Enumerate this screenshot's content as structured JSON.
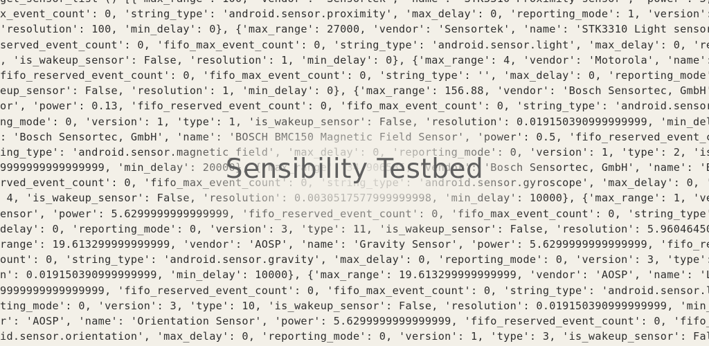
{
  "title": "Sensibility Testbed",
  "code_lines": [
    "get_sensor_list () [{'max_range': 100, 'vendor': 'Sensortek', 'name': 'STK3310 Proximity sensor', 'power': 3, 'fifo_reser",
    "x_event_count': 0, 'string_type': 'android.sensor.proximity', 'max_delay': 0, 'reporting_mode': 1, 'version': 1, 'type': 8,",
    "'resolution': 100, 'min_delay': 0}, {'max_range': 27000, 'vendor': 'Sensortek', 'name': 'STK3310 Light sensor', 'power': 3,",
    "served_event_count': 0, 'fifo_max_event_count': 0, 'string_type': 'android.sensor.light', 'max_delay': 0, 'reporting_mode':",
    ", 'is_wakeup_sensor': False, 'resolution': 1, 'min_delay': 0}, {'max_range': 4, 'vendor': 'Motorola', 'name': 'Moto",
    "fifo_reserved_event_count': 0, 'fifo_max_event_count': 0, 'string_type': '', 'max_delay': 0, 'reporting_mode': 1, 'versi",
    "eup_sensor': False, 'resolution': 1, 'min_delay': 0}, {'max_range': 156.88, 'vendor': 'Bosch Sensortec, GmbH', 'name':",
    "or', 'power': 0.13, 'fifo_reserved_event_count': 0, 'fifo_max_event_count': 0, 'string_type': 'android.sensor.accelero",
    "ng_mode': 0, 'version': 1, 'type': 1, 'is_wakeup_sensor': False, 'resolution': 0.019150390999999999, 'min_delay': 10000",
    ": 'Bosch Sensortec, GmbH', 'name': 'BOSCH BMC150 Magnetic Field Sensor', 'power': 0.5, 'fifo_reserved_event_count': 0,",
    "ing_type': 'android.sensor.magnetic_field', 'max_delay': 0, 'reporting_mode': 0, 'version': 1, 'type': 2, 'is_wakeup_s",
    "9999999999999999, 'min_delay': 20000}, {'max_range': 34.906585, 'vendor': 'Bosch Sensortec, GmbH', 'name': 'BOSCH Gyrosco",
    "rved_event_count': 0, 'fifo_max_event_count': 0, 'string_type': 'android.sensor.gyroscope', 'max_delay': 0, 'reporting",
    " 4, 'is_wakeup_sensor': False, 'resolution': 0.0030517577999999998, 'min_delay': 10000}, {'max_range': 1, 'vendor': 'AOS",
    "ensor', 'power': 5.6299999999999999, 'fifo_reserved_event_count': 0, 'fifo_max_event_count': 0, 'string_type': 'android",
    "delay': 0, 'reporting_mode': 0, 'version': 3, 'type': 11, 'is_wakeup_sensor': False, 'resolution': 5.9604645000000001e-0",
    "range': 19.613299999999999, 'vendor': 'AOSP', 'name': 'Gravity Sensor', 'power': 5.6299999999999999, 'fifo_reserved_ev",
    "ount': 0, 'string_type': 'android.sensor.gravity', 'max_delay': 0, 'reporting_mode': 0, 'version': 3, 'type': 9, 'is_wak",
    "n': 0.019150390999999999, 'min_delay': 10000}, {'max_range': 19.613299999999999, 'vendor': 'AOSP', 'name': 'Linear Accele",
    "9999999999999999, 'fifo_reserved_event_count': 0, 'fifo_max_event_count': 0, 'string_type': 'android.sensor.linear_accel",
    "ting_mode': 0, 'version': 3, 'type': 10, 'is_wakeup_sensor': False, 'resolution': 0.019150390999999999, 'min_delay': 1000",
    "r': 'AOSP', 'name': 'Orientation Sensor', 'power': 5.6299999999999999, 'fifo_reserved_event_count': 0, 'fifo_max_event_c",
    "id.sensor.orientation', 'max_delay': 0, 'reporting_mode': 0, 'version': 1, 'type': 3, 'is_wakeup_sensor': False, 'resol"
  ]
}
